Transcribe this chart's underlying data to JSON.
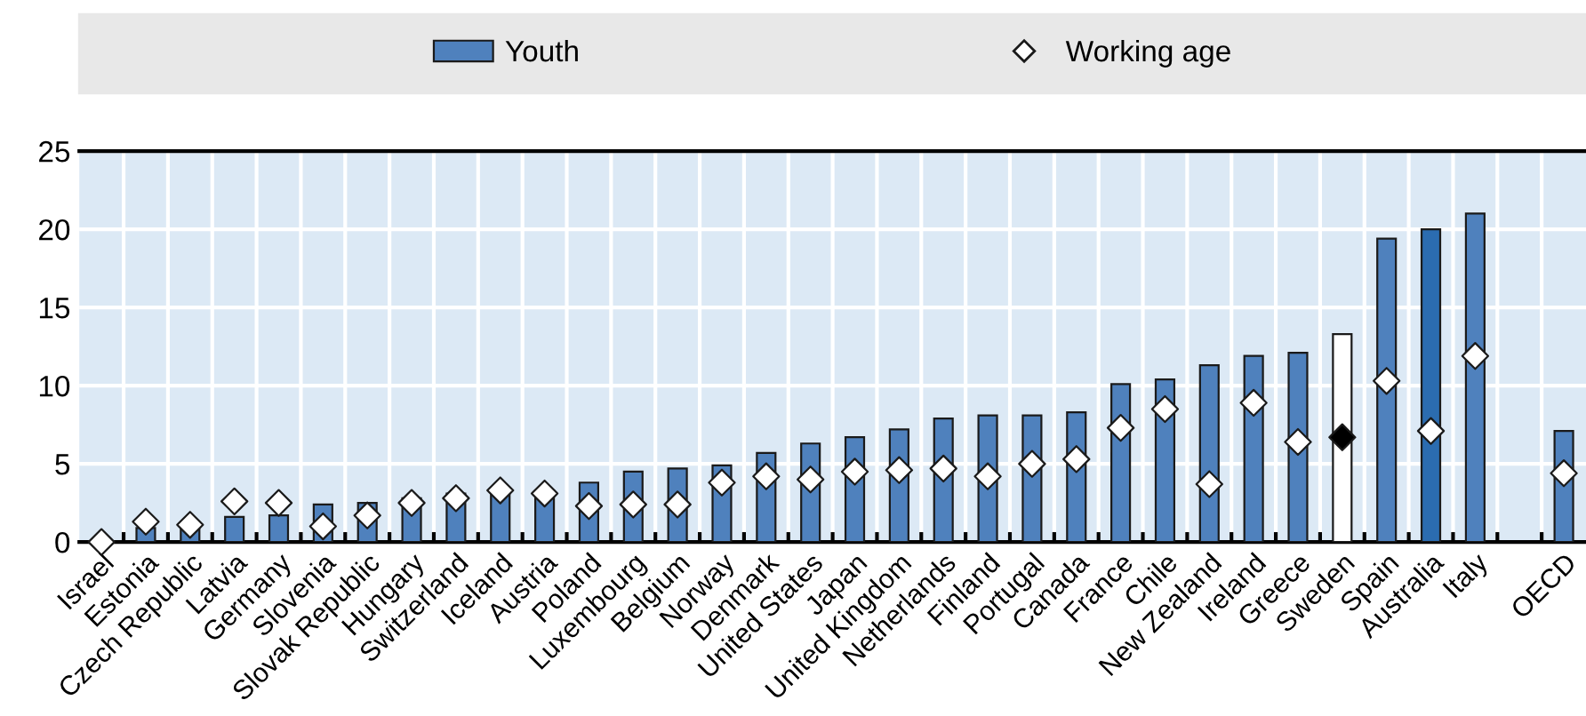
{
  "chart_data": {
    "type": "bar",
    "categories": [
      "Israel",
      "Estonia",
      "Czech Republic",
      "Latvia",
      "Germany",
      "Slovenia",
      "Slovak Republic",
      "Hungary",
      "Switzerland",
      "Iceland",
      "Austria",
      "Poland",
      "Luxembourg",
      "Belgium",
      "Norway",
      "Denmark",
      "United States",
      "Japan",
      "United Kingdom",
      "Netherlands",
      "Finland",
      "Portugal",
      "Canada",
      "France",
      "Chile",
      "New Zealand",
      "Ireland",
      "Greece",
      "Sweden",
      "Spain",
      "Australia",
      "Italy",
      null,
      "OECD"
    ],
    "series": [
      {
        "name": "Youth",
        "color": "#4f81bd",
        "colors": [
          "#4f81bd",
          "#4f81bd",
          "#4f81bd",
          "#4f81bd",
          "#4f81bd",
          "#4f81bd",
          "#4f81bd",
          "#4f81bd",
          "#4f81bd",
          "#4f81bd",
          "#4f81bd",
          "#4f81bd",
          "#4f81bd",
          "#4f81bd",
          "#4f81bd",
          "#4f81bd",
          "#4f81bd",
          "#4f81bd",
          "#4f81bd",
          "#4f81bd",
          "#4f81bd",
          "#4f81bd",
          "#4f81bd",
          "#4f81bd",
          "#4f81bd",
          "#4f81bd",
          "#4f81bd",
          "#4f81bd",
          "#ffffff",
          "#4f81bd",
          "#2b6cb0",
          "#4f81bd",
          "#4f81bd",
          "#4f81bd"
        ],
        "values": [
          null,
          0.9,
          0.9,
          1.6,
          1.7,
          2.4,
          2.5,
          2.8,
          3.1,
          3.2,
          3.3,
          3.8,
          4.5,
          4.7,
          4.9,
          5.7,
          6.3,
          6.7,
          7.2,
          7.9,
          8.1,
          8.1,
          8.3,
          10.1,
          10.4,
          11.3,
          11.9,
          12.1,
          13.3,
          19.4,
          20.0,
          21.0,
          null,
          7.1
        ]
      },
      {
        "name": "Working age",
        "type": "scatter",
        "marker": "diamond",
        "color": "#ffffff",
        "colors": [
          "#ffffff",
          "#ffffff",
          "#ffffff",
          "#ffffff",
          "#ffffff",
          "#ffffff",
          "#ffffff",
          "#ffffff",
          "#ffffff",
          "#ffffff",
          "#ffffff",
          "#ffffff",
          "#ffffff",
          "#ffffff",
          "#ffffff",
          "#ffffff",
          "#ffffff",
          "#ffffff",
          "#ffffff",
          "#ffffff",
          "#ffffff",
          "#ffffff",
          "#ffffff",
          "#ffffff",
          "#ffffff",
          "#ffffff",
          "#ffffff",
          "#ffffff",
          "#000000",
          "#ffffff",
          "#ffffff",
          "#ffffff",
          "#ffffff",
          "#ffffff"
        ],
        "values": [
          0,
          1.3,
          1.1,
          2.6,
          2.5,
          1.0,
          1.7,
          2.5,
          2.8,
          3.3,
          3.1,
          2.3,
          2.4,
          2.4,
          3.8,
          4.2,
          4.0,
          4.5,
          4.6,
          4.7,
          4.2,
          5.0,
          5.3,
          7.3,
          8.5,
          3.7,
          8.9,
          6.4,
          6.7,
          10.3,
          7.1,
          11.9,
          null,
          4.4
        ]
      }
    ],
    "ylim": [
      0,
      25
    ],
    "yticks": [
      0,
      5,
      10,
      15,
      20,
      25
    ],
    "grid": true,
    "legend": "top"
  }
}
